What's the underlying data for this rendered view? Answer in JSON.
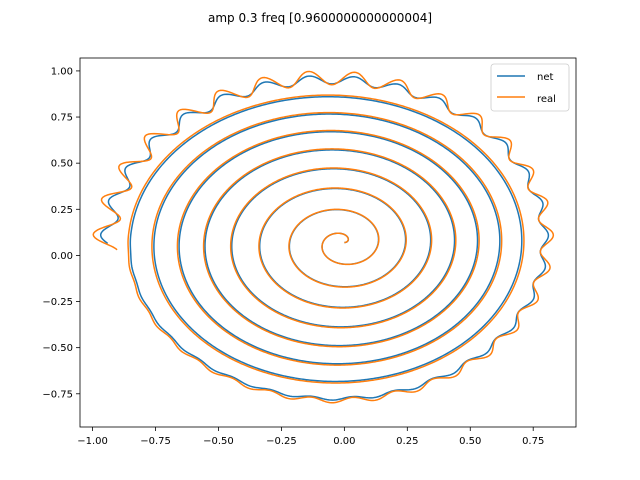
{
  "chart_data": {
    "type": "line",
    "title": "amp 0.3 freq [0.9600000000000004]",
    "xlabel": "",
    "ylabel": "",
    "xlim": [
      -1.05,
      0.92
    ],
    "ylim": [
      -0.93,
      1.07
    ],
    "x_ticks": [
      -1.0,
      -0.75,
      -0.5,
      -0.25,
      0.0,
      0.25,
      0.5,
      0.75
    ],
    "x_tick_labels": [
      "−1.00",
      "−0.75",
      "−0.50",
      "−0.25",
      "0.00",
      "0.25",
      "0.50",
      "0.75"
    ],
    "y_ticks": [
      -0.75,
      -0.5,
      -0.25,
      0.0,
      0.25,
      0.5,
      0.75,
      1.0
    ],
    "y_tick_labels": [
      "−0.75",
      "−0.50",
      "−0.25",
      "0.00",
      "0.25",
      "0.50",
      "0.75",
      "1.00"
    ],
    "grid": false,
    "legend_position": "top-right",
    "series": [
      {
        "name": "net",
        "color": "#1f77b4",
        "spiral": {
          "start": [
            0.0,
            0.07
          ],
          "end_center": [
            -0.05,
            0.065
          ],
          "end_radius_x": 0.89,
          "end_radius_y": 0.91,
          "turns": 8.5,
          "outer_band_width": 0.03
        }
      },
      {
        "name": "real",
        "color": "#ff7f0e",
        "spiral": {
          "start": [
            0.0,
            0.07
          ],
          "end_center": [
            -0.05,
            0.065
          ],
          "end_radius_x": 0.89,
          "end_radius_y": 0.91,
          "turns": 8.5,
          "outer_band_width": 0.05
        }
      }
    ]
  }
}
